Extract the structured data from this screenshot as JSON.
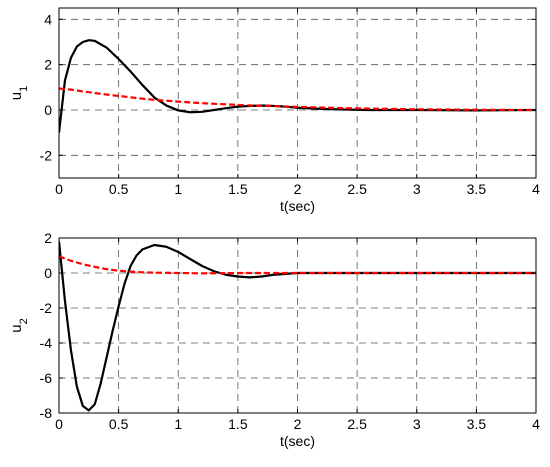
{
  "chart_data": [
    {
      "type": "line",
      "xlabel": "t(sec)",
      "ylabel": "u",
      "ylabel_sub": "1",
      "xlim": [
        0,
        4
      ],
      "ylim": [
        -3,
        4.5
      ],
      "xticks": [
        0,
        0.5,
        1,
        1.5,
        2,
        2.5,
        3,
        3.5,
        4
      ],
      "xtick_labels": [
        "0",
        "0.5",
        "1",
        "1.5",
        "2",
        "2.5",
        "3",
        "3.5",
        "4"
      ],
      "yticks": [
        -2,
        0,
        2,
        4
      ],
      "ytick_labels": [
        "-2",
        "0",
        "2",
        "4"
      ],
      "grid": true,
      "series": [
        {
          "color": "#000000",
          "style": "solid",
          "x": [
            0,
            0.05,
            0.1,
            0.15,
            0.2,
            0.25,
            0.3,
            0.4,
            0.5,
            0.6,
            0.7,
            0.8,
            0.9,
            1.0,
            1.1,
            1.2,
            1.3,
            1.4,
            1.5,
            1.6,
            1.7,
            1.8,
            1.9,
            2.0,
            2.2,
            2.4,
            2.6,
            3.0,
            3.5,
            4.0
          ],
          "y": [
            -1.0,
            1.3,
            2.3,
            2.8,
            3.0,
            3.08,
            3.05,
            2.75,
            2.25,
            1.7,
            1.1,
            0.55,
            0.2,
            -0.02,
            -0.1,
            -0.08,
            0.0,
            0.08,
            0.15,
            0.18,
            0.2,
            0.18,
            0.15,
            0.1,
            0.05,
            0.02,
            0.0,
            0.0,
            -0.02,
            0.0
          ]
        },
        {
          "color": "#ff0000",
          "style": "dashed",
          "x": [
            0,
            0.1,
            0.2,
            0.3,
            0.4,
            0.5,
            0.6,
            0.7,
            0.8,
            0.9,
            1.0,
            1.2,
            1.4,
            1.6,
            1.8,
            2.0,
            2.4,
            3.0,
            3.5,
            4.0
          ],
          "y": [
            0.95,
            0.9,
            0.82,
            0.75,
            0.68,
            0.62,
            0.56,
            0.5,
            0.45,
            0.41,
            0.37,
            0.3,
            0.25,
            0.2,
            0.17,
            0.14,
            0.08,
            0.03,
            0.01,
            0.0
          ]
        }
      ]
    },
    {
      "type": "line",
      "xlabel": "t(sec)",
      "ylabel": "u",
      "ylabel_sub": "2",
      "xlim": [
        0,
        4
      ],
      "ylim": [
        -8,
        2
      ],
      "xticks": [
        0,
        0.5,
        1,
        1.5,
        2,
        2.5,
        3,
        3.5,
        4
      ],
      "xtick_labels": [
        "0",
        "0.5",
        "1",
        "1.5",
        "2",
        "2.5",
        "3",
        "3.5",
        "4"
      ],
      "yticks": [
        -8,
        -6,
        -4,
        -2,
        0,
        2
      ],
      "ytick_labels": [
        "-8",
        "-6",
        "-4",
        "-2",
        "0",
        "2"
      ],
      "grid": true,
      "series": [
        {
          "color": "#000000",
          "style": "solid",
          "x": [
            0,
            0.05,
            0.1,
            0.15,
            0.2,
            0.25,
            0.3,
            0.35,
            0.4,
            0.45,
            0.5,
            0.55,
            0.6,
            0.65,
            0.7,
            0.8,
            0.9,
            1.0,
            1.1,
            1.2,
            1.3,
            1.4,
            1.5,
            1.6,
            1.7,
            1.8,
            2.0,
            2.5,
            3.0,
            4.0
          ],
          "y": [
            1.8,
            -1.6,
            -4.4,
            -6.5,
            -7.6,
            -7.85,
            -7.5,
            -6.3,
            -4.8,
            -3.3,
            -1.9,
            -0.6,
            0.4,
            1.0,
            1.35,
            1.6,
            1.5,
            1.2,
            0.8,
            0.4,
            0.1,
            -0.1,
            -0.2,
            -0.25,
            -0.2,
            -0.1,
            0.0,
            0.0,
            0.0,
            0.0
          ]
        },
        {
          "color": "#ff0000",
          "style": "dashed",
          "x": [
            0,
            0.1,
            0.2,
            0.3,
            0.4,
            0.5,
            0.6,
            0.7,
            0.8,
            1.0,
            1.2,
            1.5,
            2.0,
            3.0,
            4.0
          ],
          "y": [
            0.95,
            0.7,
            0.5,
            0.35,
            0.22,
            0.13,
            0.08,
            0.04,
            0.02,
            0.0,
            -0.02,
            0.0,
            0.0,
            0.0,
            0.0
          ]
        }
      ]
    }
  ]
}
